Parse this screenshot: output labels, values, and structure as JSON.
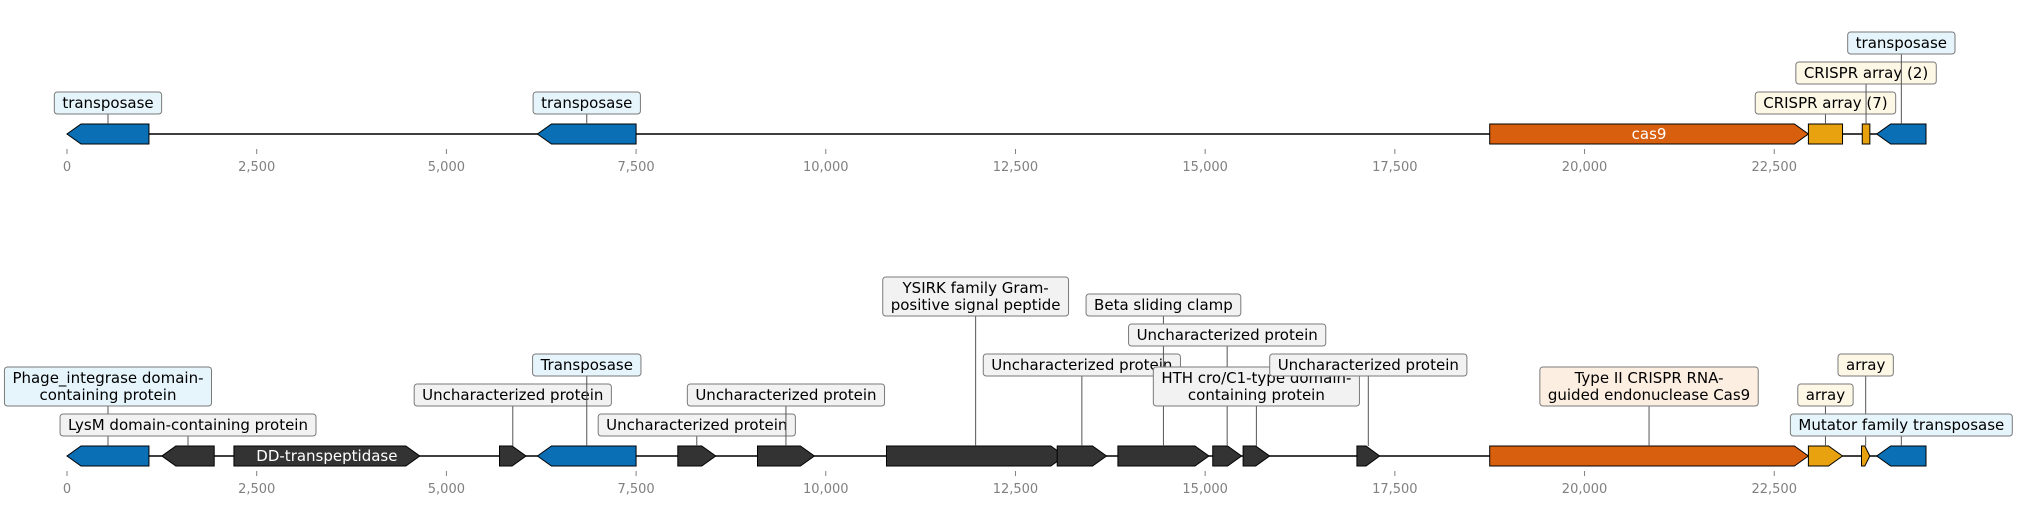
{
  "colors": {
    "transposase": "#0a6fb5",
    "cas9": "#d85f0d",
    "crispr": "#e8a10f",
    "other": "#333333",
    "box_transposase": "#e6f4fc",
    "box_crispr": "#fdf7e6",
    "box_cas9": "#fdeee2",
    "box_other": "#f2f2f2"
  },
  "axis": {
    "min": 0,
    "max": 24500,
    "tick_labels": [
      "0",
      "2,500",
      "5,000",
      "7,500",
      "10,000",
      "12,500",
      "15,000",
      "17,500",
      "20,000",
      "22,500"
    ],
    "tick_values": [
      0,
      2500,
      5000,
      7500,
      10000,
      12500,
      15000,
      17500,
      20000,
      22500
    ]
  },
  "tracks": [
    {
      "id": "top",
      "features": [
        {
          "start": 0,
          "end": 1080,
          "strand": -1,
          "kind": "transposase",
          "label": "transposase",
          "box": "transposase",
          "level": 0
        },
        {
          "start": 6200,
          "end": 7500,
          "strand": -1,
          "kind": "transposase",
          "label": "transposase",
          "box": "transposase",
          "level": 0
        },
        {
          "start": 18750,
          "end": 22950,
          "strand": 1,
          "kind": "cas9",
          "inner_label": "cas9"
        },
        {
          "start": 22950,
          "end": 23400,
          "strand": 0,
          "kind": "crispr",
          "label": "CRISPR array (7)",
          "box": "crispr",
          "level": 0
        },
        {
          "start": 23660,
          "end": 23760,
          "strand": 0,
          "kind": "crispr",
          "label": "CRISPR array (2)",
          "box": "crispr",
          "level": 1
        },
        {
          "start": 23850,
          "end": 24500,
          "strand": -1,
          "kind": "transposase",
          "label": "transposase",
          "box": "transposase",
          "level": 2
        }
      ]
    },
    {
      "id": "bottom",
      "features": [
        {
          "start": 0,
          "end": 1080,
          "strand": -1,
          "kind": "transposase",
          "label": "Phage_integrase domain-containing protein",
          "label_lines": [
            "Phage_integrase domain-",
            "containing protein"
          ],
          "box": "transposase",
          "level": 1
        },
        {
          "start": 1250,
          "end": 1940,
          "strand": -1,
          "kind": "other",
          "label": "LysM domain-containing protein",
          "box": "other",
          "level": 0
        },
        {
          "start": 2200,
          "end": 4650,
          "strand": 1,
          "kind": "other",
          "inner_label": "DD-transpeptidase"
        },
        {
          "start": 5700,
          "end": 6050,
          "strand": 1,
          "kind": "other",
          "label": "Uncharacterized protein",
          "box": "other",
          "level": 1
        },
        {
          "start": 6200,
          "end": 7500,
          "strand": -1,
          "kind": "transposase",
          "label": "Transposase",
          "box": "transposase",
          "level": 2
        },
        {
          "start": 8050,
          "end": 8550,
          "strand": 1,
          "kind": "other",
          "label": "Uncharacterized protein",
          "box": "other",
          "level": 0
        },
        {
          "start": 9100,
          "end": 9850,
          "strand": 1,
          "kind": "other",
          "label": "Uncharacterized protein",
          "box": "other",
          "level": 1
        },
        {
          "start": 10800,
          "end": 13150,
          "strand": 1,
          "kind": "other",
          "label": "YSIRK family Gram-positive signal peptide",
          "label_lines": [
            "YSIRK family Gram-",
            "positive signal peptide"
          ],
          "box": "other",
          "level": 4
        },
        {
          "start": 13050,
          "end": 13700,
          "strand": 1,
          "kind": "other",
          "label": "Uncharacterized protein",
          "box": "other",
          "level": 2
        },
        {
          "start": 13850,
          "end": 15050,
          "strand": 1,
          "kind": "other",
          "label": "Beta sliding clamp",
          "box": "other",
          "level": 4
        },
        {
          "start": 15100,
          "end": 15480,
          "strand": 1,
          "kind": "other",
          "label": "Uncharacterized protein",
          "box": "other",
          "level": 3
        },
        {
          "start": 15500,
          "end": 15850,
          "strand": 1,
          "kind": "other",
          "label": "HTH cro/C1-type domain-containing protein",
          "label_lines": [
            "HTH cro/C1-type domain-",
            "containing protein"
          ],
          "box": "other",
          "level": 1
        },
        {
          "start": 17000,
          "end": 17300,
          "strand": 1,
          "kind": "other",
          "label": "Uncharacterized protein",
          "box": "other",
          "level": 2
        },
        {
          "start": 18750,
          "end": 22950,
          "strand": 1,
          "kind": "cas9",
          "label": "Type II CRISPR RNA-guided endonuclease Cas9",
          "label_lines": [
            "Type II CRISPR RNA-",
            "guided endonuclease Cas9"
          ],
          "box": "cas9",
          "level": 1
        },
        {
          "start": 22950,
          "end": 23400,
          "strand": 1,
          "kind": "crispr",
          "label": "array",
          "box": "crispr",
          "level": 1
        },
        {
          "start": 23650,
          "end": 23760,
          "strand": 1,
          "kind": "crispr",
          "label": "array",
          "box": "crispr",
          "level": 2
        },
        {
          "start": 23850,
          "end": 24500,
          "strand": -1,
          "kind": "transposase",
          "label": "Mutator family transposase",
          "box": "transposase",
          "level": 0
        }
      ]
    }
  ]
}
